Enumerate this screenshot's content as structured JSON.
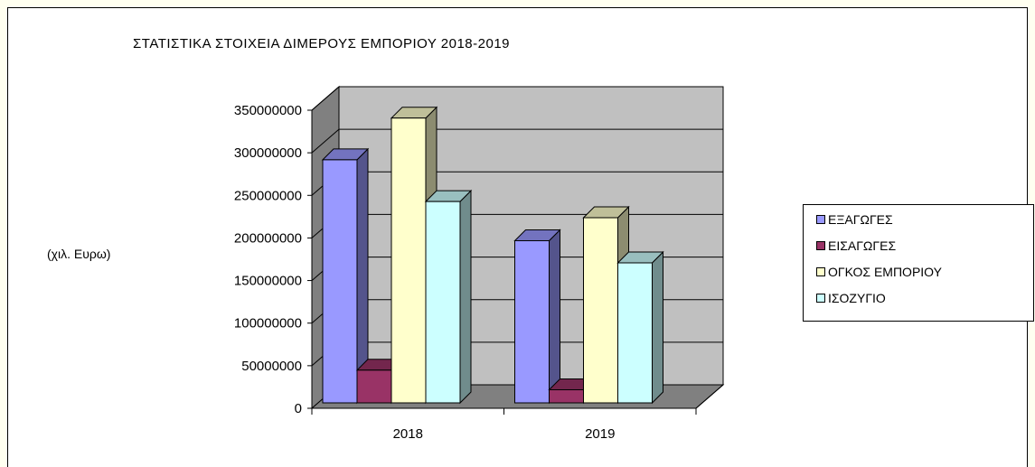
{
  "chart_data": {
    "type": "bar",
    "title": "ΣΤΑΤΙΣΤΙΚΑ ΣΤΟΙΧΕΙΑ ΔΙΜΕΡΟΥΣ ΕΜΠΟΡΙΟΥ 2018-2019",
    "ylabel": "(χιλ. Ευρω)",
    "xlabel": "",
    "categories": [
      "2018",
      "2019"
    ],
    "yticks": [
      "0",
      "50000000",
      "100000000",
      "150000000",
      "200000000",
      "250000000",
      "300000000",
      "350000000"
    ],
    "ylim": [
      0,
      350000000
    ],
    "grid": true,
    "legend_position": "right",
    "series": [
      {
        "name": "ΕΞΑΓΩΓΕΣ",
        "color": "#9999ff",
        "values": [
          296000000,
          201000000
        ]
      },
      {
        "name": "ΕΙΣΑΓΩΓΕΣ",
        "color": "#993366",
        "values": [
          49000000,
          26000000
        ]
      },
      {
        "name": "ΟΓΚΟΣ ΕΜΠΟΡΙΟΥ",
        "color": "#ffffcc",
        "values": [
          345000000,
          228000000
        ]
      },
      {
        "name": "ΙΣΟΖΥΓΙΟ",
        "color": "#ccffff",
        "values": [
          247000000,
          175000000
        ]
      }
    ]
  }
}
